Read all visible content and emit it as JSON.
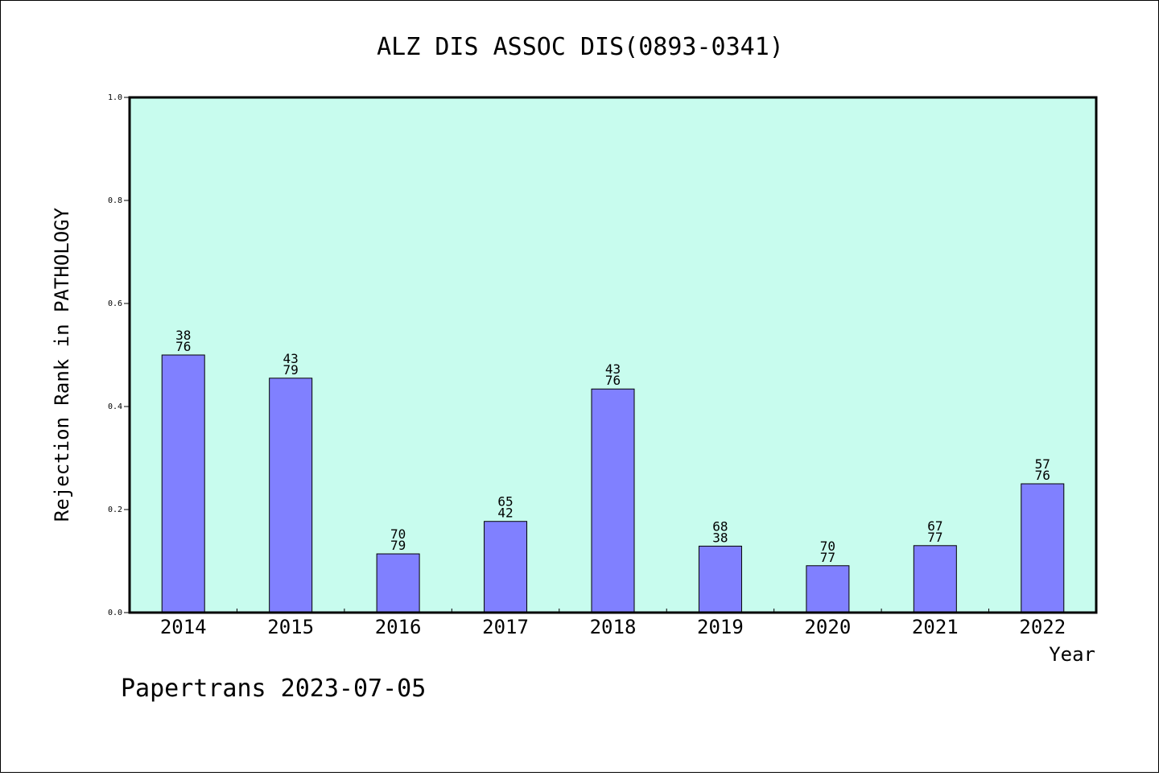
{
  "chart_data": {
    "type": "bar",
    "title": "ALZ DIS ASSOC DIS(0893-0341)",
    "xlabel": "Year",
    "ylabel": "Rejection Rank in PATHOLOGY",
    "ylim": [
      0,
      1.0
    ],
    "yticks": [
      "0.0",
      "0.2",
      "0.4",
      "0.6",
      "0.8",
      "1.0"
    ],
    "categories": [
      "2014",
      "2015",
      "2016",
      "2017",
      "2018",
      "2019",
      "2020",
      "2021",
      "2022"
    ],
    "values": [
      0.5,
      0.455,
      0.114,
      0.177,
      0.434,
      0.129,
      0.091,
      0.13,
      0.25
    ],
    "labels": [
      [
        "38",
        "76"
      ],
      [
        "43",
        "79"
      ],
      [
        "70",
        "79"
      ],
      [
        "65",
        "42"
      ],
      [
        "43",
        "76"
      ],
      [
        "68",
        "38"
      ],
      [
        "70",
        "77"
      ],
      [
        "67",
        "77"
      ],
      [
        "57",
        "76"
      ]
    ],
    "grid": false,
    "colors": {
      "plot_background": "#c8fcee",
      "bar_fill": "#8080ff",
      "bar_stroke": "#000000"
    }
  },
  "footer": {
    "text": "Papertrans 2023-07-05"
  }
}
